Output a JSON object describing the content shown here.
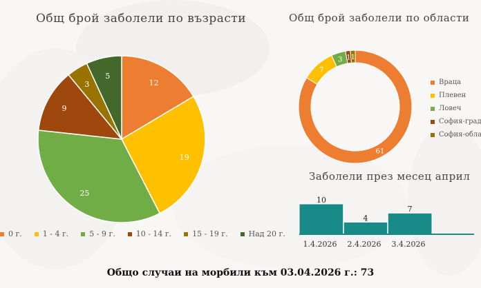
{
  "colors": {
    "orange": "#ED7D31",
    "yellow": "#FFC000",
    "green": "#70AD47",
    "brown": "#9E480E",
    "olive": "#997300",
    "darkgreen": "#43682B",
    "teal": "#188A87"
  },
  "chart_data": [
    {
      "type": "pie",
      "title": "Общ брой заболели по възрасти",
      "categories": [
        "0 г.",
        "1 - 4 г.",
        "5 - 9 г.",
        "10 - 14 г.",
        "15 - 19 г.",
        "Над 20 г."
      ],
      "values": [
        12,
        19,
        25,
        9,
        3,
        5
      ],
      "legend_position": "bottom"
    },
    {
      "type": "pie",
      "variant": "donut",
      "title": "Общ брой заболели по области",
      "categories": [
        "Враца",
        "Плевен",
        "Ловеч",
        "София-град",
        "София-област"
      ],
      "values": [
        61,
        7,
        3,
        1,
        1
      ],
      "legend_position": "right"
    },
    {
      "type": "area",
      "title": "Заболели през месец април",
      "categories": [
        "1.4.2026",
        "2.4.2026",
        "3.4.2026"
      ],
      "values": [
        10,
        4,
        7
      ],
      "ylim": [
        0,
        10
      ]
    }
  ],
  "footer": {
    "total_text": "Общо случаи на морбили към 03.04.2026 г.: 73"
  }
}
